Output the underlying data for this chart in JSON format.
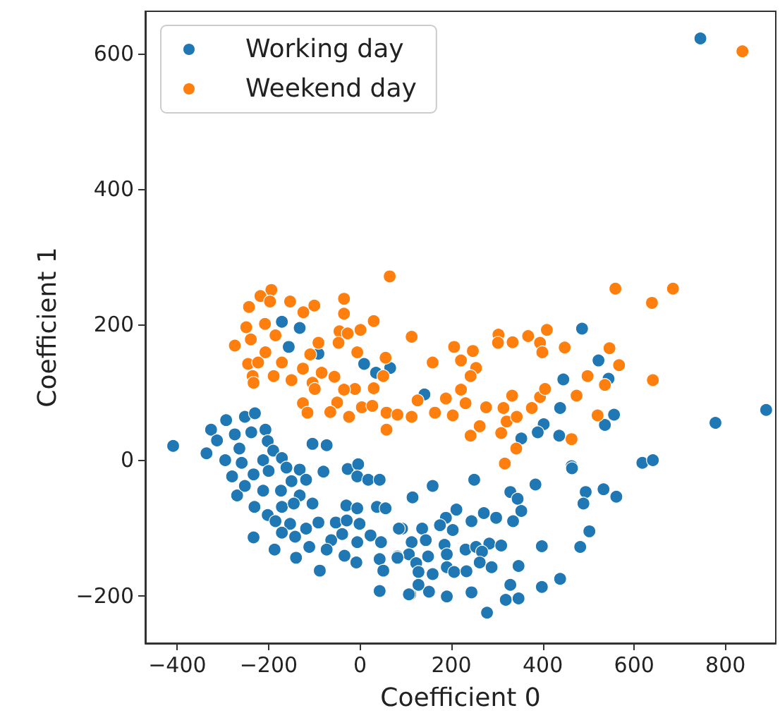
{
  "chart_data": {
    "type": "scatter",
    "xlabel": "Coefficient 0",
    "ylabel": "Coefficient 1",
    "xlim": [
      -470,
      910
    ],
    "ylim": [
      -270,
      662
    ],
    "xticks": [
      -400,
      -200,
      0,
      200,
      400,
      600,
      800
    ],
    "yticks": [
      -200,
      0,
      200,
      400,
      600
    ],
    "grid": false,
    "legend": "top left",
    "marker": "circle",
    "series": [
      {
        "name": "Working day",
        "color": "#1f77b4",
        "x": [
          745,
          -171,
          -132,
          -156,
          -91,
          9,
          66,
          35,
          -409,
          486,
          522,
          544,
          445,
          141,
          438,
          556,
          536,
          402,
          389,
          436,
          353,
          778,
          889,
          618,
          641,
          463,
          159,
          250,
          384,
          464,
          329,
          345,
          494,
          533,
          561,
          489,
          211,
          271,
          353,
          188,
          244,
          298,
          335,
          136,
          175,
          203,
          502,
          92,
          113,
          144,
          185,
          231,
          254,
          283,
          309,
          398,
          482,
          107,
          149,
          190,
          267,
          82,
          123,
          159,
          190,
          206,
          233,
          262,
          288,
          347,
          438,
          151,
          110,
          190,
          244,
          329,
          398,
          319,
          347,
          278,
          -336,
          -326,
          -293,
          -252,
          -230,
          -313,
          -274,
          -264,
          -238,
          -207,
          -202,
          -295,
          -259,
          -212,
          -190,
          -171,
          -280,
          -233,
          -200,
          -161,
          -132,
          -104,
          -73,
          -27,
          -4,
          -6,
          18,
          43,
          -80,
          -118,
          -150,
          -269,
          -252,
          -212,
          -173,
          -132,
          -104,
          -231,
          -202,
          -171,
          -145,
          -30,
          -6,
          37,
          56,
          115,
          -185,
          -153,
          -118,
          -91,
          -53,
          -29,
          -1,
          -171,
          -142,
          -63,
          -39,
          -6,
          23,
          46,
          85,
          -233,
          -187,
          -140,
          -111,
          -73,
          -34,
          -8,
          43,
          82,
          -88,
          51,
          128,
          43,
          107,
          128
        ],
        "values": [
          622,
          204,
          195,
          167,
          157,
          142,
          136,
          129,
          21,
          194,
          147,
          120,
          119,
          97,
          77,
          67,
          52,
          53,
          41,
          36,
          32,
          55,
          74,
          -4,
          0,
          -9,
          -38,
          -29,
          -36,
          -12,
          -47,
          -57,
          -47,
          -43,
          -54,
          -64,
          -73,
          -78,
          -75,
          -85,
          -90,
          -85,
          -90,
          -101,
          -96,
          -103,
          -105,
          -101,
          -121,
          -118,
          -125,
          -132,
          -128,
          -123,
          -126,
          -127,
          -128,
          -139,
          -142,
          -139,
          -135,
          -142,
          -152,
          -168,
          -158,
          -165,
          -164,
          -151,
          -158,
          -156,
          -175,
          -194,
          -198,
          -201,
          -195,
          -184,
          -187,
          -206,
          -204,
          -225,
          10,
          45,
          59,
          64,
          69,
          29,
          38,
          17,
          41,
          45,
          28,
          0,
          -4,
          0,
          14,
          3,
          -24,
          -21,
          -16,
          -11,
          -14,
          24,
          22,
          -13,
          -6,
          -24,
          -29,
          -29,
          -17,
          -29,
          -31,
          -52,
          -38,
          -45,
          -45,
          -52,
          -64,
          -69,
          -81,
          -69,
          -64,
          -67,
          -71,
          -69,
          -71,
          -55,
          -90,
          -94,
          -101,
          -92,
          -92,
          -89,
          -94,
          -107,
          -113,
          -118,
          -109,
          -121,
          -111,
          -121,
          -101,
          -114,
          -132,
          -144,
          -128,
          -132,
          -141,
          -151,
          -146,
          -144,
          -163,
          -163,
          -165,
          -193,
          -198,
          -184
        ]
      },
      {
        "name": "Weekend day",
        "color": "#ff7f0e",
        "x": [
          837,
          65,
          -194,
          -218,
          -243,
          -197,
          -153,
          -100,
          -35,
          -35,
          -124,
          -249,
          -208,
          -185,
          -239,
          -274,
          -45,
          -47,
          1,
          30,
          -27,
          113,
          -207,
          -245,
          -223,
          -171,
          -125,
          -109,
          -91,
          -84,
          -6,
          -235,
          -233,
          -189,
          -150,
          -104,
          -56,
          56,
          51,
          30,
          -11,
          -35,
          -99,
          -125,
          -115,
          -50,
          -65,
          -24,
          4,
          27,
          58,
          82,
          113,
          58,
          126,
          559,
          685,
          639,
          641,
          409,
          368,
          303,
          334,
          394,
          399,
          448,
          546,
          567,
          498,
          536,
          302,
          206,
          247,
          221,
          159,
          254,
          242,
          221,
          188,
          231,
          276,
          314,
          333,
          376,
          394,
          405,
          474,
          164,
          203,
          262,
          321,
          343,
          309,
          242,
          342,
          463,
          520,
          317
        ],
        "values": [
          603,
          271,
          251,
          242,
          226,
          234,
          234,
          228,
          238,
          216,
          218,
          196,
          201,
          184,
          178,
          169,
          190,
          173,
          192,
          205,
          187,
          182,
          159,
          142,
          144,
          144,
          135,
          156,
          173,
          129,
          159,
          124,
          114,
          124,
          118,
          114,
          123,
          151,
          124,
          106,
          105,
          104,
          105,
          84,
          70,
          85,
          71,
          64,
          78,
          80,
          70,
          67,
          64,
          45,
          88,
          253,
          253,
          232,
          118,
          192,
          183,
          185,
          174,
          173,
          159,
          166,
          165,
          140,
          124,
          111,
          173,
          167,
          161,
          147,
          144,
          136,
          124,
          104,
          91,
          84,
          78,
          77,
          95,
          77,
          93,
          105,
          95,
          70,
          66,
          50,
          57,
          64,
          40,
          36,
          17,
          31,
          66,
          -5
        ]
      }
    ]
  }
}
